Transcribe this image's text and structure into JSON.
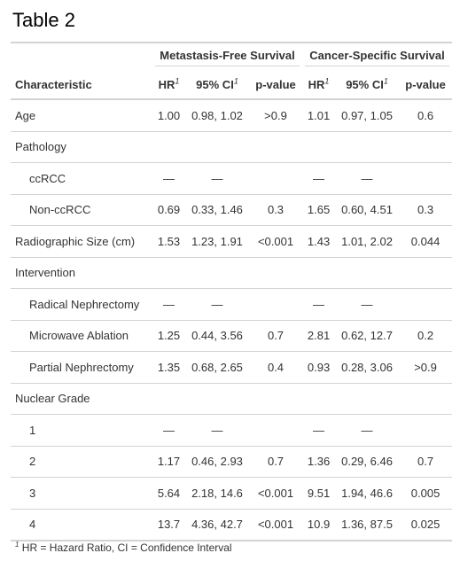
{
  "title": "Table 2",
  "spanners": {
    "mfs": "Metastasis-Free Survival",
    "css": "Cancer-Specific Survival"
  },
  "columns": {
    "characteristic": "Characteristic",
    "hr": "HR",
    "ci": "95% CI",
    "p": "p-value",
    "footnote_mark": "1"
  },
  "rows": [
    {
      "label": "Age",
      "indent": false,
      "mfs_hr": "1.00",
      "mfs_ci": "0.98, 1.02",
      "mfs_p": ">0.9",
      "css_hr": "1.01",
      "css_ci": "0.97, 1.05",
      "css_p": "0.6"
    },
    {
      "label": "Pathology",
      "indent": false,
      "mfs_hr": "",
      "mfs_ci": "",
      "mfs_p": "",
      "css_hr": "",
      "css_ci": "",
      "css_p": ""
    },
    {
      "label": "ccRCC",
      "indent": true,
      "mfs_hr": "—",
      "mfs_ci": "—",
      "mfs_p": "",
      "css_hr": "—",
      "css_ci": "—",
      "css_p": ""
    },
    {
      "label": "Non-ccRCC",
      "indent": true,
      "mfs_hr": "0.69",
      "mfs_ci": "0.33, 1.46",
      "mfs_p": "0.3",
      "css_hr": "1.65",
      "css_ci": "0.60, 4.51",
      "css_p": "0.3"
    },
    {
      "label": "Radiographic Size (cm)",
      "indent": false,
      "mfs_hr": "1.53",
      "mfs_ci": "1.23, 1.91",
      "mfs_p": "<0.001",
      "css_hr": "1.43",
      "css_ci": "1.01, 2.02",
      "css_p": "0.044"
    },
    {
      "label": "Intervention",
      "indent": false,
      "mfs_hr": "",
      "mfs_ci": "",
      "mfs_p": "",
      "css_hr": "",
      "css_ci": "",
      "css_p": ""
    },
    {
      "label": "Radical Nephrectomy",
      "indent": true,
      "mfs_hr": "—",
      "mfs_ci": "—",
      "mfs_p": "",
      "css_hr": "—",
      "css_ci": "—",
      "css_p": ""
    },
    {
      "label": "Microwave Ablation",
      "indent": true,
      "mfs_hr": "1.25",
      "mfs_ci": "0.44, 3.56",
      "mfs_p": "0.7",
      "css_hr": "2.81",
      "css_ci": "0.62, 12.7",
      "css_p": "0.2"
    },
    {
      "label": "Partial Nephrectomy",
      "indent": true,
      "mfs_hr": "1.35",
      "mfs_ci": "0.68, 2.65",
      "mfs_p": "0.4",
      "css_hr": "0.93",
      "css_ci": "0.28, 3.06",
      "css_p": ">0.9"
    },
    {
      "label": "Nuclear Grade",
      "indent": false,
      "mfs_hr": "",
      "mfs_ci": "",
      "mfs_p": "",
      "css_hr": "",
      "css_ci": "",
      "css_p": ""
    },
    {
      "label": "1",
      "indent": true,
      "mfs_hr": "—",
      "mfs_ci": "—",
      "mfs_p": "",
      "css_hr": "—",
      "css_ci": "—",
      "css_p": ""
    },
    {
      "label": "2",
      "indent": true,
      "mfs_hr": "1.17",
      "mfs_ci": "0.46, 2.93",
      "mfs_p": "0.7",
      "css_hr": "1.36",
      "css_ci": "0.29, 6.46",
      "css_p": "0.7"
    },
    {
      "label": "3",
      "indent": true,
      "mfs_hr": "5.64",
      "mfs_ci": "2.18, 14.6",
      "mfs_p": "<0.001",
      "css_hr": "9.51",
      "css_ci": "1.94, 46.6",
      "css_p": "0.005"
    },
    {
      "label": "4",
      "indent": true,
      "mfs_hr": "13.7",
      "mfs_ci": "4.36, 42.7",
      "mfs_p": "<0.001",
      "css_hr": "10.9",
      "css_ci": "1.36, 87.5",
      "css_p": "0.025"
    }
  ],
  "footnote": {
    "mark": "1",
    "text": "HR = Hazard Ratio, CI = Confidence Interval"
  }
}
